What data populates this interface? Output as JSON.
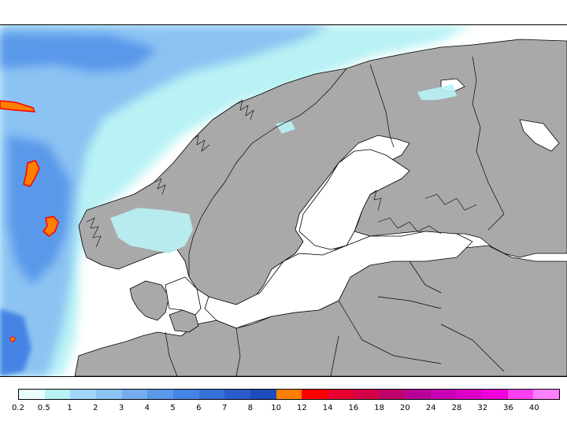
{
  "map": {
    "region": "Scandinavia and the Baltic Sea",
    "land_color": "#a9a9a9",
    "sea_color": "#ffffff",
    "coastline_color": "#000000"
  },
  "legend": {
    "labels": [
      "0.2",
      "0.5",
      "1",
      "2",
      "3",
      "4",
      "5",
      "6",
      "7",
      "8",
      "10",
      "12",
      "14",
      "16",
      "18",
      "20",
      "24",
      "28",
      "32",
      "36",
      "40"
    ],
    "colors": [
      "#e8feff",
      "#b8f2f4",
      "#a0d6f7",
      "#8cc3f3",
      "#74acef",
      "#5a98ea",
      "#4584e4",
      "#356fd8",
      "#2a5ccc",
      "#1e4bbd",
      "#ff8000",
      "#ff0000",
      "#e80030",
      "#d40048",
      "#c0006a",
      "#b60096",
      "#c700b4",
      "#dc00c8",
      "#f000dc",
      "#ff40f0",
      "#ff80ff"
    ]
  }
}
